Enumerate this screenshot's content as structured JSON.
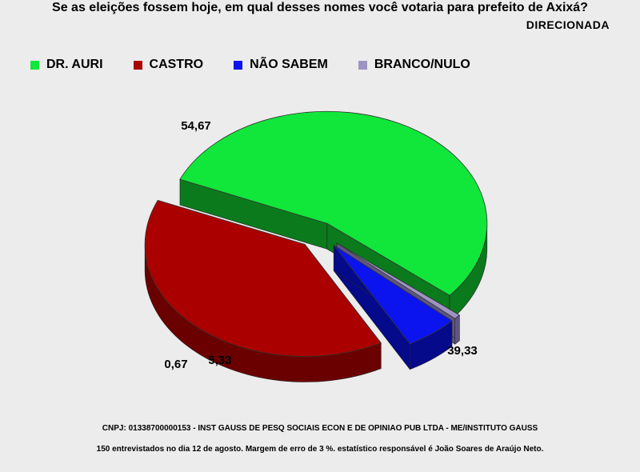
{
  "chart_data": {
    "type": "pie",
    "title": "Se as eleições fossem hoje, em qual desses nomes você votaria para prefeito de Axixá?",
    "subtitle": "DIRECIONADA",
    "legend_position": "top",
    "slices": [
      {
        "name": "DR. AURI",
        "value": 54.67,
        "label": "54,67",
        "color": "#11e63a",
        "side": "#0a7a1c"
      },
      {
        "name": "CASTRO",
        "value": 39.33,
        "label": "39,33",
        "color": "#aa0000",
        "side": "#6a0000"
      },
      {
        "name": "NÃO SABEM",
        "value": 5.33,
        "label": "5,33",
        "color": "#0b14ee",
        "side": "#050a8a"
      },
      {
        "name": "BRANCO/NULO",
        "value": 0.67,
        "label": "0,67",
        "color": "#9e94c4",
        "side": "#5e5680"
      }
    ]
  },
  "footer": {
    "line1": "CNPJ: 01338700000153 - INST GAUSS DE PESQ SOCIAIS ECON E DE OPINIAO PUB LTDA - ME/INSTITUTO GAUSS",
    "line2": "150 entrevistados no dia 12 de agosto. Margem de erro de 3 %. estatístico responsável é João Soares de Araújo Neto."
  }
}
